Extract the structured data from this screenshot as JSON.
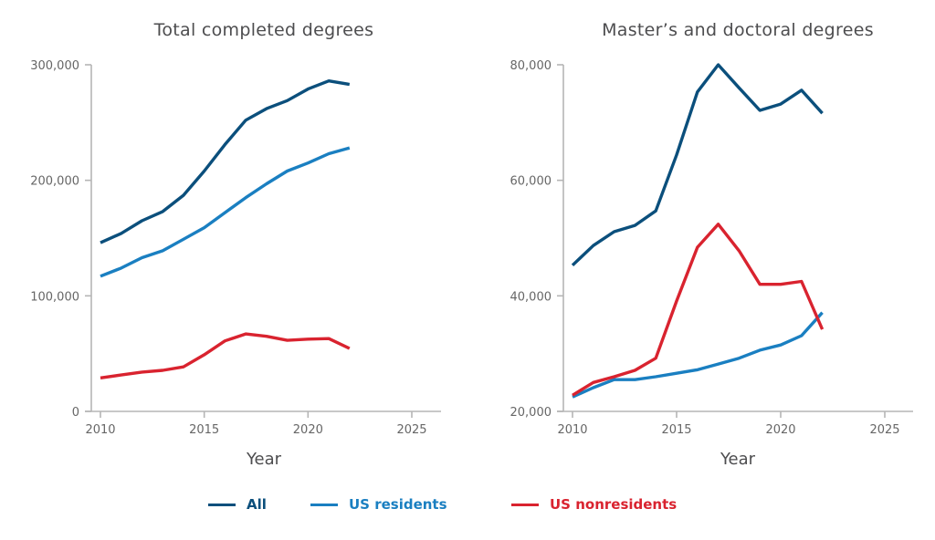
{
  "legend": [
    {
      "key": "all",
      "label": "All",
      "color": "#0b4f7c"
    },
    {
      "key": "us_residents",
      "label": "US residents",
      "color": "#1a7fc1"
    },
    {
      "key": "us_nonresidents",
      "label": "US nonresidents",
      "color": "#d9232f"
    }
  ],
  "chart_data": [
    {
      "type": "line",
      "title": "Total completed degrees",
      "xlabel": "Year",
      "ylabel": "",
      "xlim": [
        2010,
        2026
      ],
      "ylim": [
        0,
        300000
      ],
      "xticks": [
        2010,
        2015,
        2020,
        2025
      ],
      "xtick_labels": [
        "2010",
        "2015",
        "2020",
        "2025"
      ],
      "yticks": [
        0,
        100000,
        200000,
        300000
      ],
      "ytick_labels": [
        "0",
        "100,000",
        "200,000",
        "300,000"
      ],
      "grid": false,
      "legend_position": "bottom",
      "x": [
        2010,
        2011,
        2012,
        2013,
        2014,
        2015,
        2016,
        2017,
        2018,
        2019,
        2020,
        2021,
        2022
      ],
      "series": [
        {
          "key": "all",
          "name": "All",
          "values": [
            146000,
            154000,
            165000,
            173000,
            187000,
            208000,
            231000,
            252000,
            262000,
            269000,
            279000,
            286000,
            283000
          ]
        },
        {
          "key": "us_residents",
          "name": "US residents",
          "values": [
            117000,
            124000,
            133000,
            139000,
            149000,
            159000,
            172000,
            185000,
            197000,
            208000,
            215000,
            223000,
            228000
          ]
        },
        {
          "key": "us_nonresidents",
          "name": "US nonresidents",
          "values": [
            29000,
            31500,
            34000,
            35500,
            38500,
            49000,
            61000,
            67000,
            65000,
            61500,
            62500,
            63000,
            54500
          ]
        }
      ]
    },
    {
      "type": "line",
      "title": "Master’s and doctoral degrees",
      "xlabel": "Year",
      "ylabel": "",
      "xlim": [
        2010,
        2026
      ],
      "ylim": [
        20000,
        80000
      ],
      "xticks": [
        2010,
        2015,
        2020,
        2025
      ],
      "xtick_labels": [
        "2010",
        "2015",
        "2020",
        "2025"
      ],
      "yticks": [
        20000,
        40000,
        60000,
        80000
      ],
      "ytick_labels": [
        "20,000",
        "40,000",
        "60,000",
        "80,000"
      ],
      "grid": false,
      "legend_position": "bottom",
      "x": [
        2010,
        2011,
        2012,
        2013,
        2014,
        2015,
        2016,
        2017,
        2018,
        2019,
        2020,
        2021,
        2022
      ],
      "series": [
        {
          "key": "all",
          "name": "All",
          "values": [
            45300,
            48700,
            51100,
            52200,
            54700,
            64400,
            75300,
            80000,
            76000,
            72100,
            73200,
            75600,
            71600
          ]
        },
        {
          "key": "us_residents",
          "name": "US residents",
          "values": [
            22500,
            24100,
            25500,
            25500,
            26000,
            26600,
            27200,
            28200,
            29200,
            30600,
            31500,
            33100,
            37100
          ]
        },
        {
          "key": "us_nonresidents",
          "name": "US nonresidents",
          "values": [
            22800,
            25000,
            26000,
            27100,
            29200,
            39100,
            48400,
            52400,
            47800,
            42000,
            42000,
            42500,
            34200
          ]
        }
      ]
    }
  ]
}
